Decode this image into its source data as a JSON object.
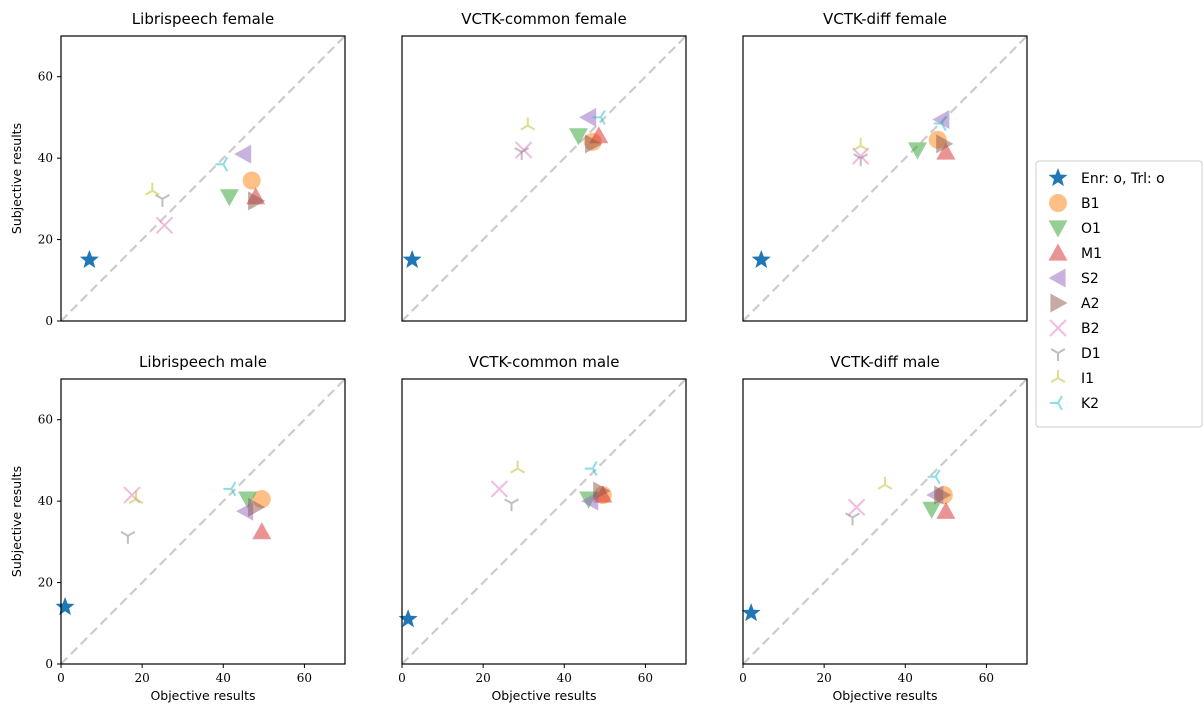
{
  "chart_data": {
    "type": "scatter",
    "xlabel": "Objective results",
    "ylabel": "Subjective results",
    "xlim": [
      0,
      70
    ],
    "ylim": [
      0,
      70
    ],
    "xticks": [
      "0",
      "20",
      "40",
      "60"
    ],
    "yticks": [
      "0",
      "20",
      "40",
      "60"
    ],
    "reference_line": "y = x (dashed, grey)",
    "legend_position": "right",
    "series_styles": [
      {
        "name": "Enr: o, Trl: o",
        "marker": "star",
        "color": "#1f77b4",
        "alpha": 1.0
      },
      {
        "name": "B1",
        "marker": "circle",
        "color": "#ff7f0e",
        "alpha": 0.5
      },
      {
        "name": "O1",
        "marker": "triangle-down",
        "color": "#2ca02c",
        "alpha": 0.5
      },
      {
        "name": "M1",
        "marker": "triangle-up",
        "color": "#d62728",
        "alpha": 0.5
      },
      {
        "name": "S2",
        "marker": "triangle-left",
        "color": "#9467bd",
        "alpha": 0.5
      },
      {
        "name": "A2",
        "marker": "triangle-right",
        "color": "#8c564b",
        "alpha": 0.5
      },
      {
        "name": "B2",
        "marker": "x",
        "color": "#e377c2",
        "alpha": 0.5
      },
      {
        "name": "D1",
        "marker": "tri-down",
        "color": "#7f7f7f",
        "alpha": 0.5
      },
      {
        "name": "I1",
        "marker": "tri-up",
        "color": "#bcbd22",
        "alpha": 0.5
      },
      {
        "name": "K2",
        "marker": "tri-left",
        "color": "#17becf",
        "alpha": 0.5
      }
    ],
    "panels": [
      {
        "title": "Librispeech female",
        "points": [
          [
            7,
            15
          ],
          [
            47,
            34.5
          ],
          [
            41.5,
            30.5
          ],
          [
            48,
            30.5
          ],
          [
            45,
            41
          ],
          [
            48,
            29.5
          ],
          [
            25.5,
            23.5
          ],
          [
            25,
            30
          ],
          [
            22.5,
            32
          ],
          [
            40,
            38.5
          ]
        ]
      },
      {
        "title": "VCTK-common female",
        "points": [
          [
            2.5,
            15
          ],
          [
            47,
            44
          ],
          [
            43.5,
            45.5
          ],
          [
            48.5,
            45.5
          ],
          [
            46,
            50
          ],
          [
            47,
            43.5
          ],
          [
            30,
            42
          ],
          [
            29.5,
            41.5
          ],
          [
            31,
            48
          ],
          [
            49,
            50
          ]
        ]
      },
      {
        "title": "VCTK-diff female",
        "points": [
          [
            4.5,
            15
          ],
          [
            48,
            44.5
          ],
          [
            43,
            42
          ],
          [
            50,
            41.5
          ],
          [
            49,
            49.5
          ],
          [
            49.5,
            43.5
          ],
          [
            29,
            40.5
          ],
          [
            29,
            40
          ],
          [
            29,
            43
          ],
          [
            49,
            48.5
          ]
        ]
      },
      {
        "title": "Librispeech male",
        "points": [
          [
            1,
            14
          ],
          [
            49.5,
            40.5
          ],
          [
            46,
            40.5
          ],
          [
            49.5,
            32.5
          ],
          [
            45.5,
            37.5
          ],
          [
            48,
            38.5
          ],
          [
            17.5,
            41.5
          ],
          [
            16.5,
            31.5
          ],
          [
            18.5,
            40.5
          ],
          [
            42,
            43
          ]
        ]
      },
      {
        "title": "VCTK-common male",
        "points": [
          [
            1.5,
            11
          ],
          [
            49.5,
            41.5
          ],
          [
            46,
            40.5
          ],
          [
            49.5,
            41.5
          ],
          [
            46.5,
            40
          ],
          [
            49,
            42.5
          ],
          [
            24,
            43
          ],
          [
            27,
            39.5
          ],
          [
            28.5,
            48
          ],
          [
            47,
            48
          ]
        ]
      },
      {
        "title": "VCTK-diff male",
        "points": [
          [
            2,
            12.5
          ],
          [
            49.5,
            41.5
          ],
          [
            46.5,
            38
          ],
          [
            50,
            37.5
          ],
          [
            47.5,
            41.5
          ],
          [
            49,
            41.5
          ],
          [
            28,
            38.5
          ],
          [
            27,
            36
          ],
          [
            35,
            44
          ],
          [
            47.5,
            46
          ]
        ]
      }
    ]
  }
}
